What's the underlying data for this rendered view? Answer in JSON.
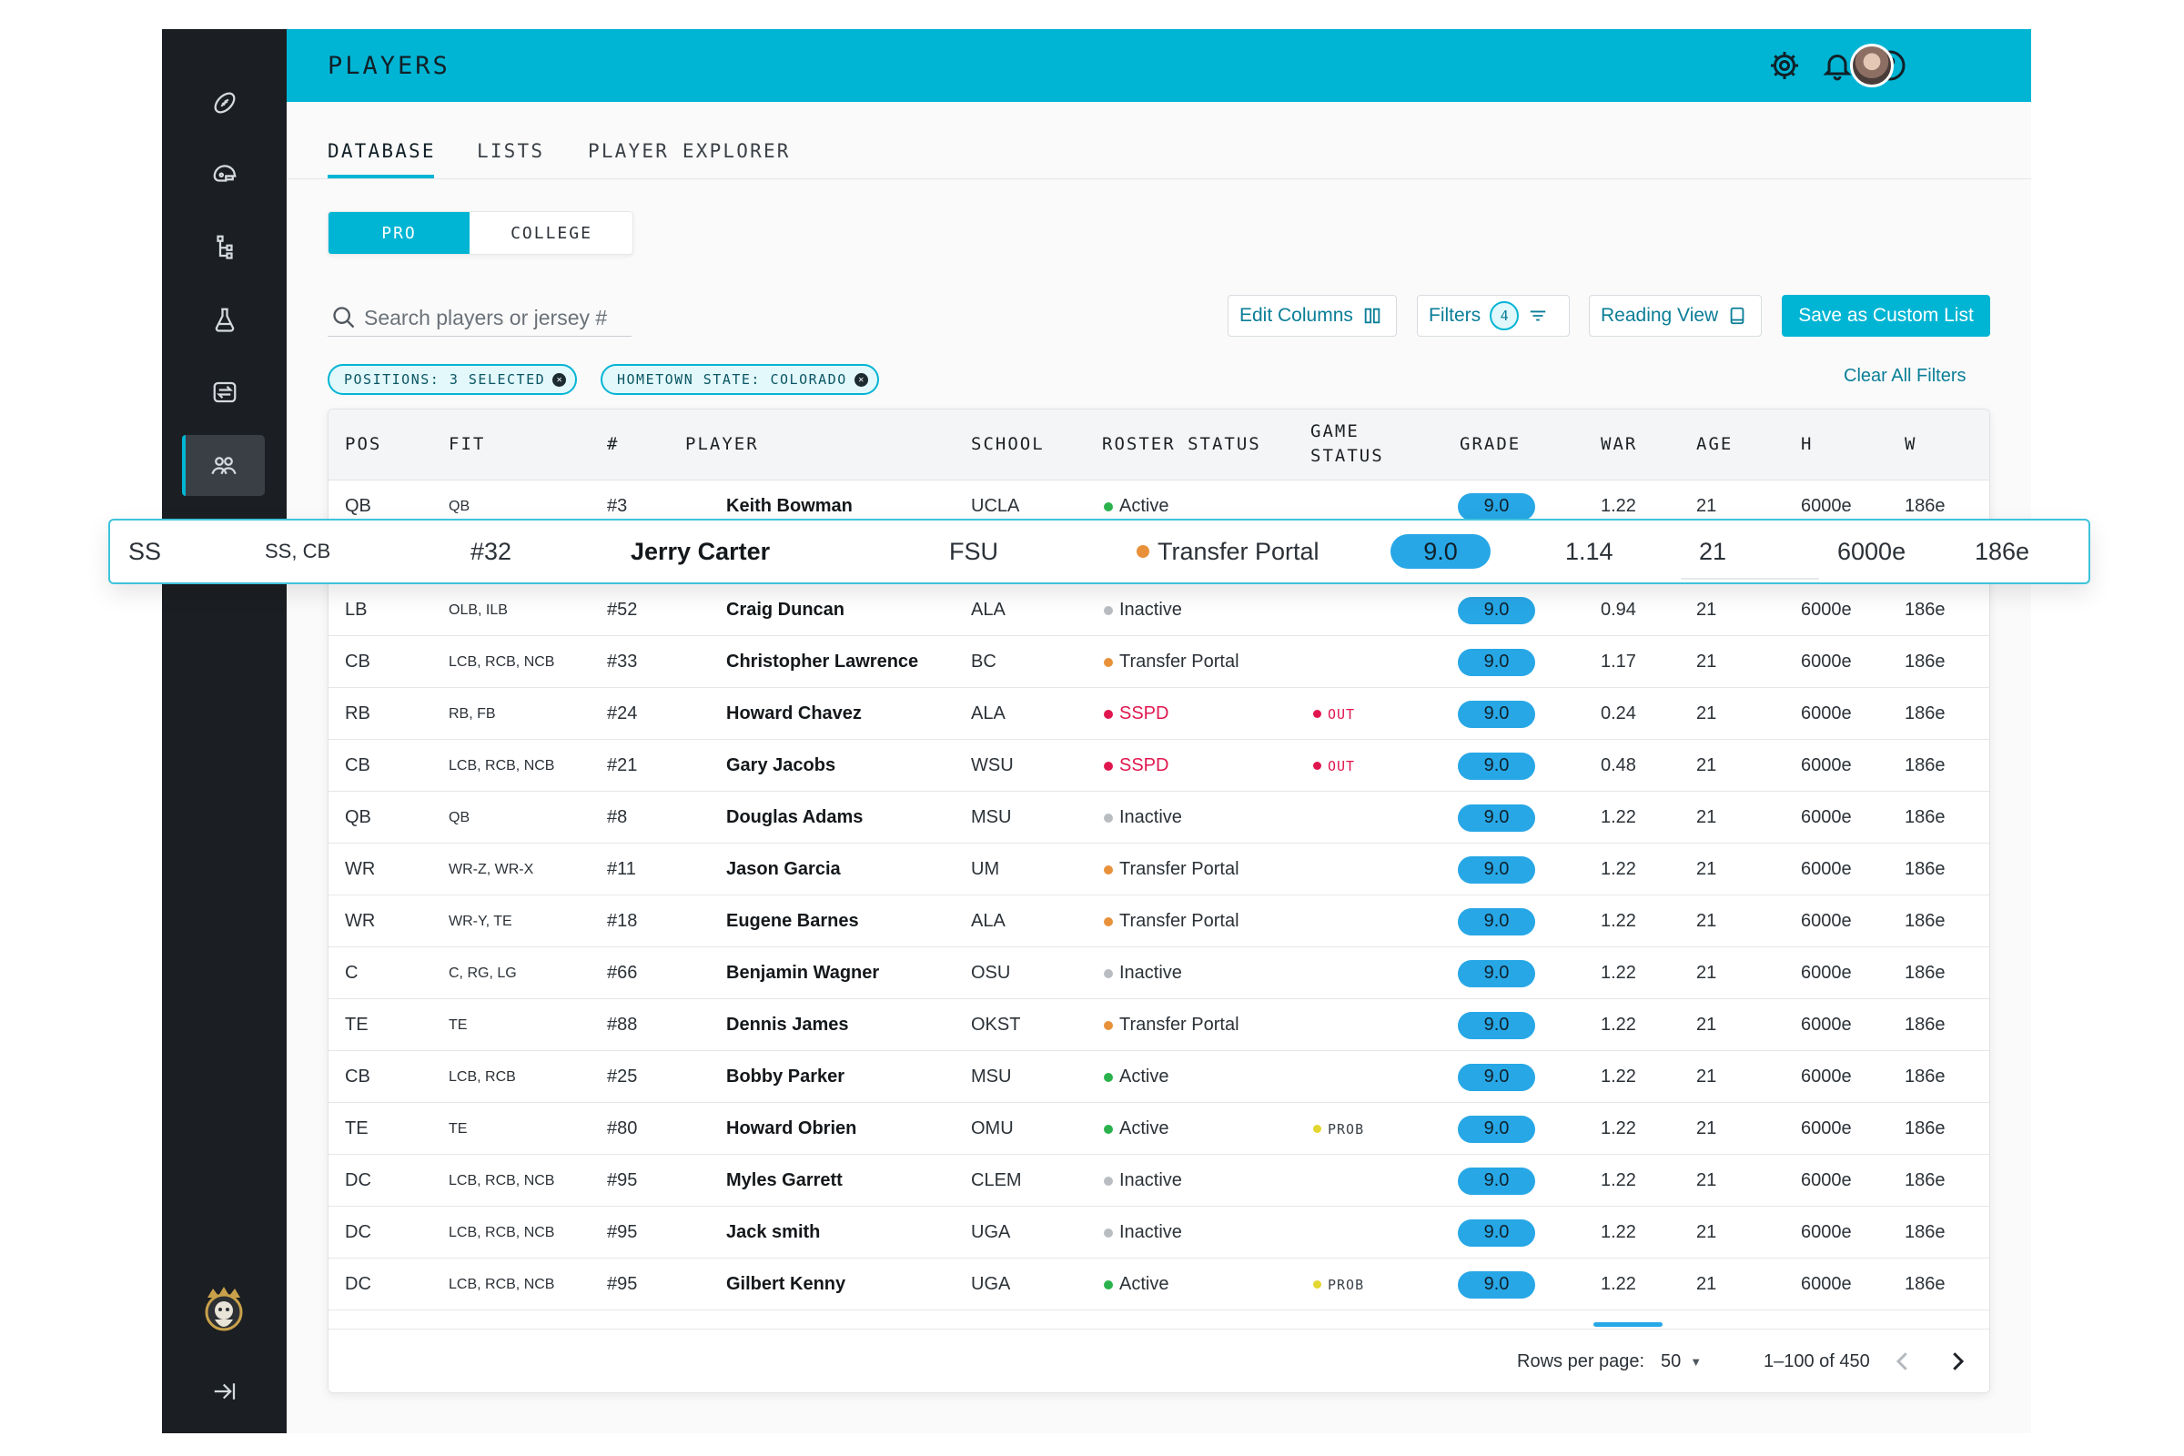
{
  "header": {
    "title": "PLAYERS"
  },
  "sidebar": {
    "icons": [
      "football-icon",
      "helmet-icon",
      "hierarchy-icon",
      "flask-icon",
      "transfer-icon",
      "team-icon"
    ],
    "active": "team-icon"
  },
  "tabs": [
    {
      "label": "DATABASE",
      "active": true
    },
    {
      "label": "LISTS",
      "active": false
    },
    {
      "label": "PLAYER EXPLORER",
      "active": false
    }
  ],
  "segment": {
    "pro": "PRO",
    "college": "COLLEGE",
    "selected": "PRO"
  },
  "search": {
    "placeholder": "Search players or jersey #",
    "value": ""
  },
  "actions": {
    "edit_columns": "Edit Columns",
    "filters": "Filters",
    "filters_count": "4",
    "reading_view": "Reading View",
    "save_list": "Save as Custom List",
    "clear_filters": "Clear All Filters"
  },
  "chips": [
    {
      "label": "POSITIONS: 3 SELECTED"
    },
    {
      "label": "HOMETOWN STATE: COLORADO"
    }
  ],
  "columns": [
    "POS",
    "FIT",
    "#",
    "PLAYER",
    "SCHOOL",
    "ROSTER STATUS",
    "GAME\nSTATUS",
    "GRADE",
    "WAR",
    "AGE",
    "H",
    "W"
  ],
  "colors": {
    "accent": "#00b5d4",
    "grade_pill": "#27a7e6",
    "active": "#2bb24c",
    "inactive": "#b9bdc1",
    "transfer_portal": "#e8913a",
    "sspd": "#e0174f",
    "out": "#e0174f",
    "prob": "#e4d630"
  },
  "rows": [
    {
      "pos": "QB",
      "fit": "QB",
      "num": "#3",
      "player": "Keith Bowman",
      "school": "UCLA",
      "status": "Active",
      "status_color": "#2bb24c",
      "game": "",
      "game_color": "",
      "grade": "9.0",
      "war": "1.22",
      "age": "21",
      "h": "6000e",
      "w": "186e"
    },
    {
      "pos": "LB",
      "fit": "OLB, ILB",
      "num": "#52",
      "player": "Craig Duncan",
      "school": "ALA",
      "status": "Inactive",
      "status_color": "#b9bdc1",
      "game": "",
      "game_color": "",
      "grade": "9.0",
      "war": "0.94",
      "age": "21",
      "h": "6000e",
      "w": "186e"
    },
    {
      "pos": "CB",
      "fit": "LCB, RCB, NCB",
      "num": "#33",
      "player": "Christopher Lawrence",
      "school": "BC",
      "status": "Transfer Portal",
      "status_color": "#e8913a",
      "game": "",
      "game_color": "",
      "grade": "9.0",
      "war": "1.17",
      "age": "21",
      "h": "6000e",
      "w": "186e"
    },
    {
      "pos": "RB",
      "fit": "RB, FB",
      "num": "#24",
      "player": "Howard Chavez",
      "school": "ALA",
      "status": "SSPD",
      "status_color": "#e0174f",
      "game": "OUT",
      "game_color": "#e0174f",
      "grade": "9.0",
      "war": "0.24",
      "age": "21",
      "h": "6000e",
      "w": "186e"
    },
    {
      "pos": "CB",
      "fit": "LCB, RCB, NCB",
      "num": "#21",
      "player": "Gary Jacobs",
      "school": "WSU",
      "status": "SSPD",
      "status_color": "#e0174f",
      "game": "OUT",
      "game_color": "#e0174f",
      "grade": "9.0",
      "war": "0.48",
      "age": "21",
      "h": "6000e",
      "w": "186e"
    },
    {
      "pos": "QB",
      "fit": "QB",
      "num": "#8",
      "player": "Douglas Adams",
      "school": "MSU",
      "status": "Inactive",
      "status_color": "#b9bdc1",
      "game": "",
      "game_color": "",
      "grade": "9.0",
      "war": "1.22",
      "age": "21",
      "h": "6000e",
      "w": "186e"
    },
    {
      "pos": "WR",
      "fit": "WR-Z, WR-X",
      "num": "#11",
      "player": "Jason Garcia",
      "school": "UM",
      "status": "Transfer Portal",
      "status_color": "#e8913a",
      "game": "",
      "game_color": "",
      "grade": "9.0",
      "war": "1.22",
      "age": "21",
      "h": "6000e",
      "w": "186e"
    },
    {
      "pos": "WR",
      "fit": "WR-Y, TE",
      "num": "#18",
      "player": "Eugene Barnes",
      "school": "ALA",
      "status": "Transfer Portal",
      "status_color": "#e8913a",
      "game": "",
      "game_color": "",
      "grade": "9.0",
      "war": "1.22",
      "age": "21",
      "h": "6000e",
      "w": "186e"
    },
    {
      "pos": "C",
      "fit": "C, RG, LG",
      "num": "#66",
      "player": "Benjamin Wagner",
      "school": "OSU",
      "status": "Inactive",
      "status_color": "#b9bdc1",
      "game": "",
      "game_color": "",
      "grade": "9.0",
      "war": "1.22",
      "age": "21",
      "h": "6000e",
      "w": "186e"
    },
    {
      "pos": "TE",
      "fit": "TE",
      "num": "#88",
      "player": "Dennis James",
      "school": "OKST",
      "status": "Transfer Portal",
      "status_color": "#e8913a",
      "game": "",
      "game_color": "",
      "grade": "9.0",
      "war": "1.22",
      "age": "21",
      "h": "6000e",
      "w": "186e"
    },
    {
      "pos": "CB",
      "fit": "LCB, RCB",
      "num": "#25",
      "player": "Bobby Parker",
      "school": "MSU",
      "status": "Active",
      "status_color": "#2bb24c",
      "game": "",
      "game_color": "",
      "grade": "9.0",
      "war": "1.22",
      "age": "21",
      "h": "6000e",
      "w": "186e"
    },
    {
      "pos": "TE",
      "fit": "TE",
      "num": "#80",
      "player": "Howard Obrien",
      "school": "OMU",
      "status": "Active",
      "status_color": "#2bb24c",
      "game": "PROB",
      "game_color": "#e4d630",
      "grade": "9.0",
      "war": "1.22",
      "age": "21",
      "h": "6000e",
      "w": "186e"
    },
    {
      "pos": "DC",
      "fit": "LCB, RCB, NCB",
      "num": "#95",
      "player": "Myles Garrett",
      "school": "CLEM",
      "status": "Inactive",
      "status_color": "#b9bdc1",
      "game": "",
      "game_color": "",
      "grade": "9.0",
      "war": "1.22",
      "age": "21",
      "h": "6000e",
      "w": "186e"
    },
    {
      "pos": "DC",
      "fit": "LCB, RCB, NCB",
      "num": "#95",
      "player": "Jack smith",
      "school": "UGA",
      "status": "Inactive",
      "status_color": "#b9bdc1",
      "game": "",
      "game_color": "",
      "grade": "9.0",
      "war": "1.22",
      "age": "21",
      "h": "6000e",
      "w": "186e"
    },
    {
      "pos": "DC",
      "fit": "LCB, RCB, NCB",
      "num": "#95",
      "player": "Gilbert Kenny",
      "school": "UGA",
      "status": "Active",
      "status_color": "#2bb24c",
      "game": "PROB",
      "game_color": "#e4d630",
      "grade": "9.0",
      "war": "1.22",
      "age": "21",
      "h": "6000e",
      "w": "186e"
    }
  ],
  "dragged_row": {
    "pos": "SS",
    "fit": "SS, CB",
    "num": "#32",
    "player": "Jerry Carter",
    "school": "FSU",
    "status": "Transfer Portal",
    "status_color": "#e8913a",
    "grade": "9.0",
    "war": "1.14",
    "age": "21",
    "h": "6000e",
    "w": "186e"
  },
  "pagination": {
    "rows_per_page_label": "Rows per page:",
    "rows_per_page": "50",
    "range": "1–100 of 450"
  }
}
